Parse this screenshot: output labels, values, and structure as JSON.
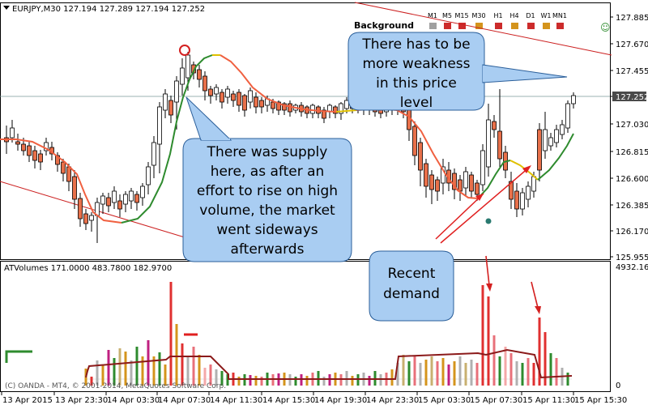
{
  "chart": {
    "symbol_header": "EURJPY,M30  127.194 127.289 127.194 127.252",
    "background_label": "Background",
    "timeframes": [
      {
        "label": "M1",
        "color": "#a0a0a0"
      },
      {
        "label": "M5",
        "color": "#cc2b2b"
      },
      {
        "label": "M15",
        "color": "#cc2b2b"
      },
      {
        "label": "M30",
        "color": "#d4941c"
      },
      {
        "label": "H1",
        "color": "#cc2b2b"
      },
      {
        "label": "H4",
        "color": "#d4941c"
      },
      {
        "label": "D1",
        "color": "#cc2b2b"
      },
      {
        "label": "W1",
        "color": "#d4941c"
      },
      {
        "label": "MN1",
        "color": "#cc2b2b"
      }
    ],
    "price_labels": [
      "127.885",
      "127.670",
      "127.455",
      "127.252",
      "127.030",
      "126.815",
      "126.600",
      "126.385",
      "126.170",
      "125.955"
    ],
    "current_price": "127.252",
    "volume_header": "ATVolumes 171.0000 483.7800 182.9700",
    "volume_scale_max": "4932.165",
    "volume_scale_min": "0",
    "copyright": "(C) OANDA - MT4, © 2001-2014, MetaQuotes Software Corp.",
    "time_labels": [
      "13 Apr 2015",
      "13 Apr 23:30",
      "14 Apr 03:30",
      "14 Apr 07:30",
      "14 Apr 11:30",
      "14 Apr 15:30",
      "14 Apr 19:30",
      "14 Apr 23:30",
      "15 Apr 03:30",
      "15 Apr 07:30",
      "15 Apr 11:30",
      "15 Apr 15:30"
    ],
    "smiley": "☺"
  },
  "annotations": {
    "supply": "There was supply here, as after an effort to rise on high volume, the market went sideways afterwards",
    "supply_lines": [
      "There was supply",
      "here, as after an",
      "effort to rise on high",
      "volume, the market",
      "went sideways",
      "afterwards"
    ],
    "weakness": "There has to be more weakness in this price level",
    "weakness_lines": [
      "There has to be",
      "more weakness",
      "in this price",
      "level"
    ],
    "demand": "Recent demand",
    "demand_lines": [
      "Recent",
      "demand"
    ]
  },
  "colors": {
    "bull": "#ffffff",
    "bear": "#e8704a",
    "callout_fill": "#a9cdf2",
    "callout_stroke": "#2b5f9a",
    "ma_up": "#2e8b2e",
    "ma_down": "#f06040",
    "trend": "#cc2020"
  }
}
